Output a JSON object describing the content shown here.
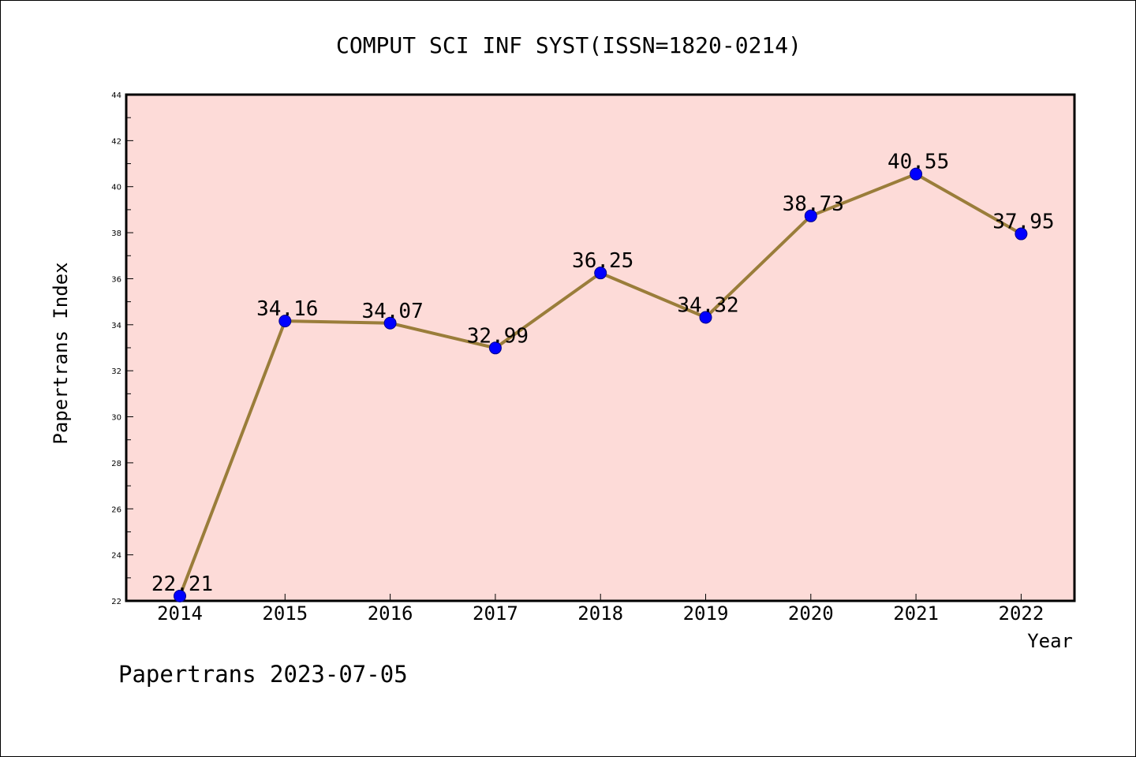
{
  "chart_data": {
    "type": "line",
    "title": "COMPUT SCI INF SYST(ISSN=1820-0214)",
    "xlabel": "Year",
    "ylabel": "Papertrans Index",
    "categories": [
      "2014",
      "2015",
      "2016",
      "2017",
      "2018",
      "2019",
      "2020",
      "2021",
      "2022"
    ],
    "series": [
      {
        "values": [
          22.21,
          34.16,
          34.07,
          32.99,
          36.25,
          34.32,
          38.73,
          40.55,
          37.95
        ]
      }
    ],
    "data_labels": [
      "22.21",
      "34.16",
      "34.07",
      "32.99",
      "36.25",
      "34.32",
      "38.73",
      "40.55",
      "37.95"
    ],
    "ylim": [
      22,
      44
    ],
    "yticks": [
      "22",
      "24",
      "26",
      "28",
      "30",
      "32",
      "34",
      "36",
      "38",
      "40",
      "42",
      "44"
    ],
    "grid": false,
    "legend": "none",
    "colors": {
      "plot_background": "#fddbd8",
      "line": "#9a7d3a",
      "marker": "#0000ff",
      "axes": "#000000"
    }
  },
  "footer": {
    "text": "Papertrans 2023-07-05"
  }
}
